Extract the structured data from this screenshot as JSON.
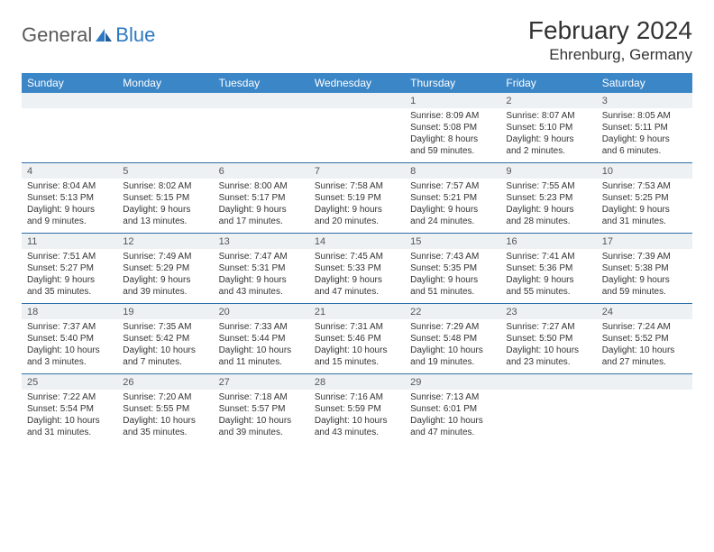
{
  "logo": {
    "general": "General",
    "blue": "Blue"
  },
  "title": "February 2024",
  "location": "Ehrenburg, Germany",
  "colors": {
    "header_bg": "#3b86c7",
    "header_text": "#ffffff",
    "daynum_bg": "#eef1f3",
    "cell_text": "#333333",
    "rule": "#2f6fa8",
    "logo_gray": "#5a5a5a",
    "logo_blue": "#2b79c2"
  },
  "weekdays": [
    "Sunday",
    "Monday",
    "Tuesday",
    "Wednesday",
    "Thursday",
    "Friday",
    "Saturday"
  ],
  "weeks": [
    [
      {
        "n": "",
        "sunrise": "",
        "sunset": "",
        "d1": "",
        "d2": ""
      },
      {
        "n": "",
        "sunrise": "",
        "sunset": "",
        "d1": "",
        "d2": ""
      },
      {
        "n": "",
        "sunrise": "",
        "sunset": "",
        "d1": "",
        "d2": ""
      },
      {
        "n": "",
        "sunrise": "",
        "sunset": "",
        "d1": "",
        "d2": ""
      },
      {
        "n": "1",
        "sunrise": "Sunrise: 8:09 AM",
        "sunset": "Sunset: 5:08 PM",
        "d1": "Daylight: 8 hours",
        "d2": "and 59 minutes."
      },
      {
        "n": "2",
        "sunrise": "Sunrise: 8:07 AM",
        "sunset": "Sunset: 5:10 PM",
        "d1": "Daylight: 9 hours",
        "d2": "and 2 minutes."
      },
      {
        "n": "3",
        "sunrise": "Sunrise: 8:05 AM",
        "sunset": "Sunset: 5:11 PM",
        "d1": "Daylight: 9 hours",
        "d2": "and 6 minutes."
      }
    ],
    [
      {
        "n": "4",
        "sunrise": "Sunrise: 8:04 AM",
        "sunset": "Sunset: 5:13 PM",
        "d1": "Daylight: 9 hours",
        "d2": "and 9 minutes."
      },
      {
        "n": "5",
        "sunrise": "Sunrise: 8:02 AM",
        "sunset": "Sunset: 5:15 PM",
        "d1": "Daylight: 9 hours",
        "d2": "and 13 minutes."
      },
      {
        "n": "6",
        "sunrise": "Sunrise: 8:00 AM",
        "sunset": "Sunset: 5:17 PM",
        "d1": "Daylight: 9 hours",
        "d2": "and 17 minutes."
      },
      {
        "n": "7",
        "sunrise": "Sunrise: 7:58 AM",
        "sunset": "Sunset: 5:19 PM",
        "d1": "Daylight: 9 hours",
        "d2": "and 20 minutes."
      },
      {
        "n": "8",
        "sunrise": "Sunrise: 7:57 AM",
        "sunset": "Sunset: 5:21 PM",
        "d1": "Daylight: 9 hours",
        "d2": "and 24 minutes."
      },
      {
        "n": "9",
        "sunrise": "Sunrise: 7:55 AM",
        "sunset": "Sunset: 5:23 PM",
        "d1": "Daylight: 9 hours",
        "d2": "and 28 minutes."
      },
      {
        "n": "10",
        "sunrise": "Sunrise: 7:53 AM",
        "sunset": "Sunset: 5:25 PM",
        "d1": "Daylight: 9 hours",
        "d2": "and 31 minutes."
      }
    ],
    [
      {
        "n": "11",
        "sunrise": "Sunrise: 7:51 AM",
        "sunset": "Sunset: 5:27 PM",
        "d1": "Daylight: 9 hours",
        "d2": "and 35 minutes."
      },
      {
        "n": "12",
        "sunrise": "Sunrise: 7:49 AM",
        "sunset": "Sunset: 5:29 PM",
        "d1": "Daylight: 9 hours",
        "d2": "and 39 minutes."
      },
      {
        "n": "13",
        "sunrise": "Sunrise: 7:47 AM",
        "sunset": "Sunset: 5:31 PM",
        "d1": "Daylight: 9 hours",
        "d2": "and 43 minutes."
      },
      {
        "n": "14",
        "sunrise": "Sunrise: 7:45 AM",
        "sunset": "Sunset: 5:33 PM",
        "d1": "Daylight: 9 hours",
        "d2": "and 47 minutes."
      },
      {
        "n": "15",
        "sunrise": "Sunrise: 7:43 AM",
        "sunset": "Sunset: 5:35 PM",
        "d1": "Daylight: 9 hours",
        "d2": "and 51 minutes."
      },
      {
        "n": "16",
        "sunrise": "Sunrise: 7:41 AM",
        "sunset": "Sunset: 5:36 PM",
        "d1": "Daylight: 9 hours",
        "d2": "and 55 minutes."
      },
      {
        "n": "17",
        "sunrise": "Sunrise: 7:39 AM",
        "sunset": "Sunset: 5:38 PM",
        "d1": "Daylight: 9 hours",
        "d2": "and 59 minutes."
      }
    ],
    [
      {
        "n": "18",
        "sunrise": "Sunrise: 7:37 AM",
        "sunset": "Sunset: 5:40 PM",
        "d1": "Daylight: 10 hours",
        "d2": "and 3 minutes."
      },
      {
        "n": "19",
        "sunrise": "Sunrise: 7:35 AM",
        "sunset": "Sunset: 5:42 PM",
        "d1": "Daylight: 10 hours",
        "d2": "and 7 minutes."
      },
      {
        "n": "20",
        "sunrise": "Sunrise: 7:33 AM",
        "sunset": "Sunset: 5:44 PM",
        "d1": "Daylight: 10 hours",
        "d2": "and 11 minutes."
      },
      {
        "n": "21",
        "sunrise": "Sunrise: 7:31 AM",
        "sunset": "Sunset: 5:46 PM",
        "d1": "Daylight: 10 hours",
        "d2": "and 15 minutes."
      },
      {
        "n": "22",
        "sunrise": "Sunrise: 7:29 AM",
        "sunset": "Sunset: 5:48 PM",
        "d1": "Daylight: 10 hours",
        "d2": "and 19 minutes."
      },
      {
        "n": "23",
        "sunrise": "Sunrise: 7:27 AM",
        "sunset": "Sunset: 5:50 PM",
        "d1": "Daylight: 10 hours",
        "d2": "and 23 minutes."
      },
      {
        "n": "24",
        "sunrise": "Sunrise: 7:24 AM",
        "sunset": "Sunset: 5:52 PM",
        "d1": "Daylight: 10 hours",
        "d2": "and 27 minutes."
      }
    ],
    [
      {
        "n": "25",
        "sunrise": "Sunrise: 7:22 AM",
        "sunset": "Sunset: 5:54 PM",
        "d1": "Daylight: 10 hours",
        "d2": "and 31 minutes."
      },
      {
        "n": "26",
        "sunrise": "Sunrise: 7:20 AM",
        "sunset": "Sunset: 5:55 PM",
        "d1": "Daylight: 10 hours",
        "d2": "and 35 minutes."
      },
      {
        "n": "27",
        "sunrise": "Sunrise: 7:18 AM",
        "sunset": "Sunset: 5:57 PM",
        "d1": "Daylight: 10 hours",
        "d2": "and 39 minutes."
      },
      {
        "n": "28",
        "sunrise": "Sunrise: 7:16 AM",
        "sunset": "Sunset: 5:59 PM",
        "d1": "Daylight: 10 hours",
        "d2": "and 43 minutes."
      },
      {
        "n": "29",
        "sunrise": "Sunrise: 7:13 AM",
        "sunset": "Sunset: 6:01 PM",
        "d1": "Daylight: 10 hours",
        "d2": "and 47 minutes."
      },
      {
        "n": "",
        "sunrise": "",
        "sunset": "",
        "d1": "",
        "d2": ""
      },
      {
        "n": "",
        "sunrise": "",
        "sunset": "",
        "d1": "",
        "d2": ""
      }
    ]
  ]
}
